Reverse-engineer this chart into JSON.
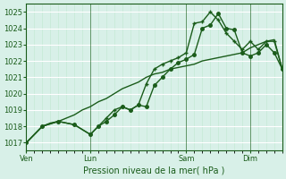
{
  "bg_color": "#d8f0e8",
  "grid_color": "#ffffff",
  "line_color": "#1a5c1a",
  "marker_color": "#1a5c1a",
  "xlabel": "Pression niveau de la mer( hPa )",
  "ylim": [
    1016.5,
    1025.5
  ],
  "yticks": [
    1017,
    1018,
    1019,
    1020,
    1021,
    1022,
    1023,
    1024,
    1025
  ],
  "xtick_labels": [
    "Ven",
    "Lun",
    "Sam",
    "Dim"
  ],
  "xtick_positions": [
    0,
    48,
    120,
    168
  ],
  "vlines": [
    0,
    48,
    120,
    168
  ],
  "total_hours": 192,
  "line1": {
    "x": [
      0,
      6,
      12,
      18,
      24,
      30,
      36,
      42,
      48,
      54,
      60,
      66,
      72,
      78,
      84,
      90,
      96,
      102,
      108,
      114,
      120,
      126,
      132,
      138,
      144,
      150,
      156,
      162,
      168,
      174,
      180,
      186,
      192
    ],
    "y": [
      1017.0,
      1017.5,
      1018.0,
      1018.2,
      1018.3,
      1018.5,
      1018.7,
      1019.0,
      1019.2,
      1019.5,
      1019.7,
      1020.0,
      1020.3,
      1020.5,
      1020.7,
      1021.0,
      1021.2,
      1021.3,
      1021.5,
      1021.6,
      1021.7,
      1021.8,
      1022.0,
      1022.1,
      1022.2,
      1022.3,
      1022.4,
      1022.5,
      1022.8,
      1023.0,
      1023.2,
      1023.3,
      1021.5
    ]
  },
  "line2": {
    "x": [
      0,
      12,
      24,
      36,
      48,
      54,
      60,
      66,
      72,
      78,
      84,
      90,
      96,
      102,
      108,
      114,
      120,
      126,
      132,
      138,
      144,
      150,
      156,
      162,
      168,
      174,
      180,
      186,
      192
    ],
    "y": [
      1017.0,
      1018.0,
      1018.3,
      1018.1,
      1017.5,
      1018.0,
      1018.3,
      1018.7,
      1019.2,
      1019.0,
      1019.3,
      1019.2,
      1020.5,
      1021.0,
      1021.5,
      1021.9,
      1022.1,
      1022.4,
      1024.0,
      1024.2,
      1024.9,
      1024.0,
      1023.9,
      1022.5,
      1022.3,
      1022.5,
      1023.0,
      1022.5,
      1021.5
    ]
  },
  "line3": {
    "x": [
      0,
      12,
      24,
      36,
      48,
      54,
      60,
      66,
      72,
      78,
      84,
      90,
      96,
      102,
      108,
      114,
      120,
      126,
      132,
      138,
      144,
      150,
      156,
      162,
      168,
      174,
      180,
      186,
      192
    ],
    "y": [
      1017.0,
      1018.0,
      1018.3,
      1018.1,
      1017.5,
      1018.0,
      1018.5,
      1019.0,
      1019.2,
      1019.0,
      1019.3,
      1020.6,
      1021.5,
      1021.8,
      1022.0,
      1022.2,
      1022.5,
      1024.3,
      1024.4,
      1025.0,
      1024.5,
      1023.7,
      1023.2,
      1022.7,
      1023.2,
      1022.7,
      1023.2,
      1023.2,
      1021.5
    ]
  }
}
